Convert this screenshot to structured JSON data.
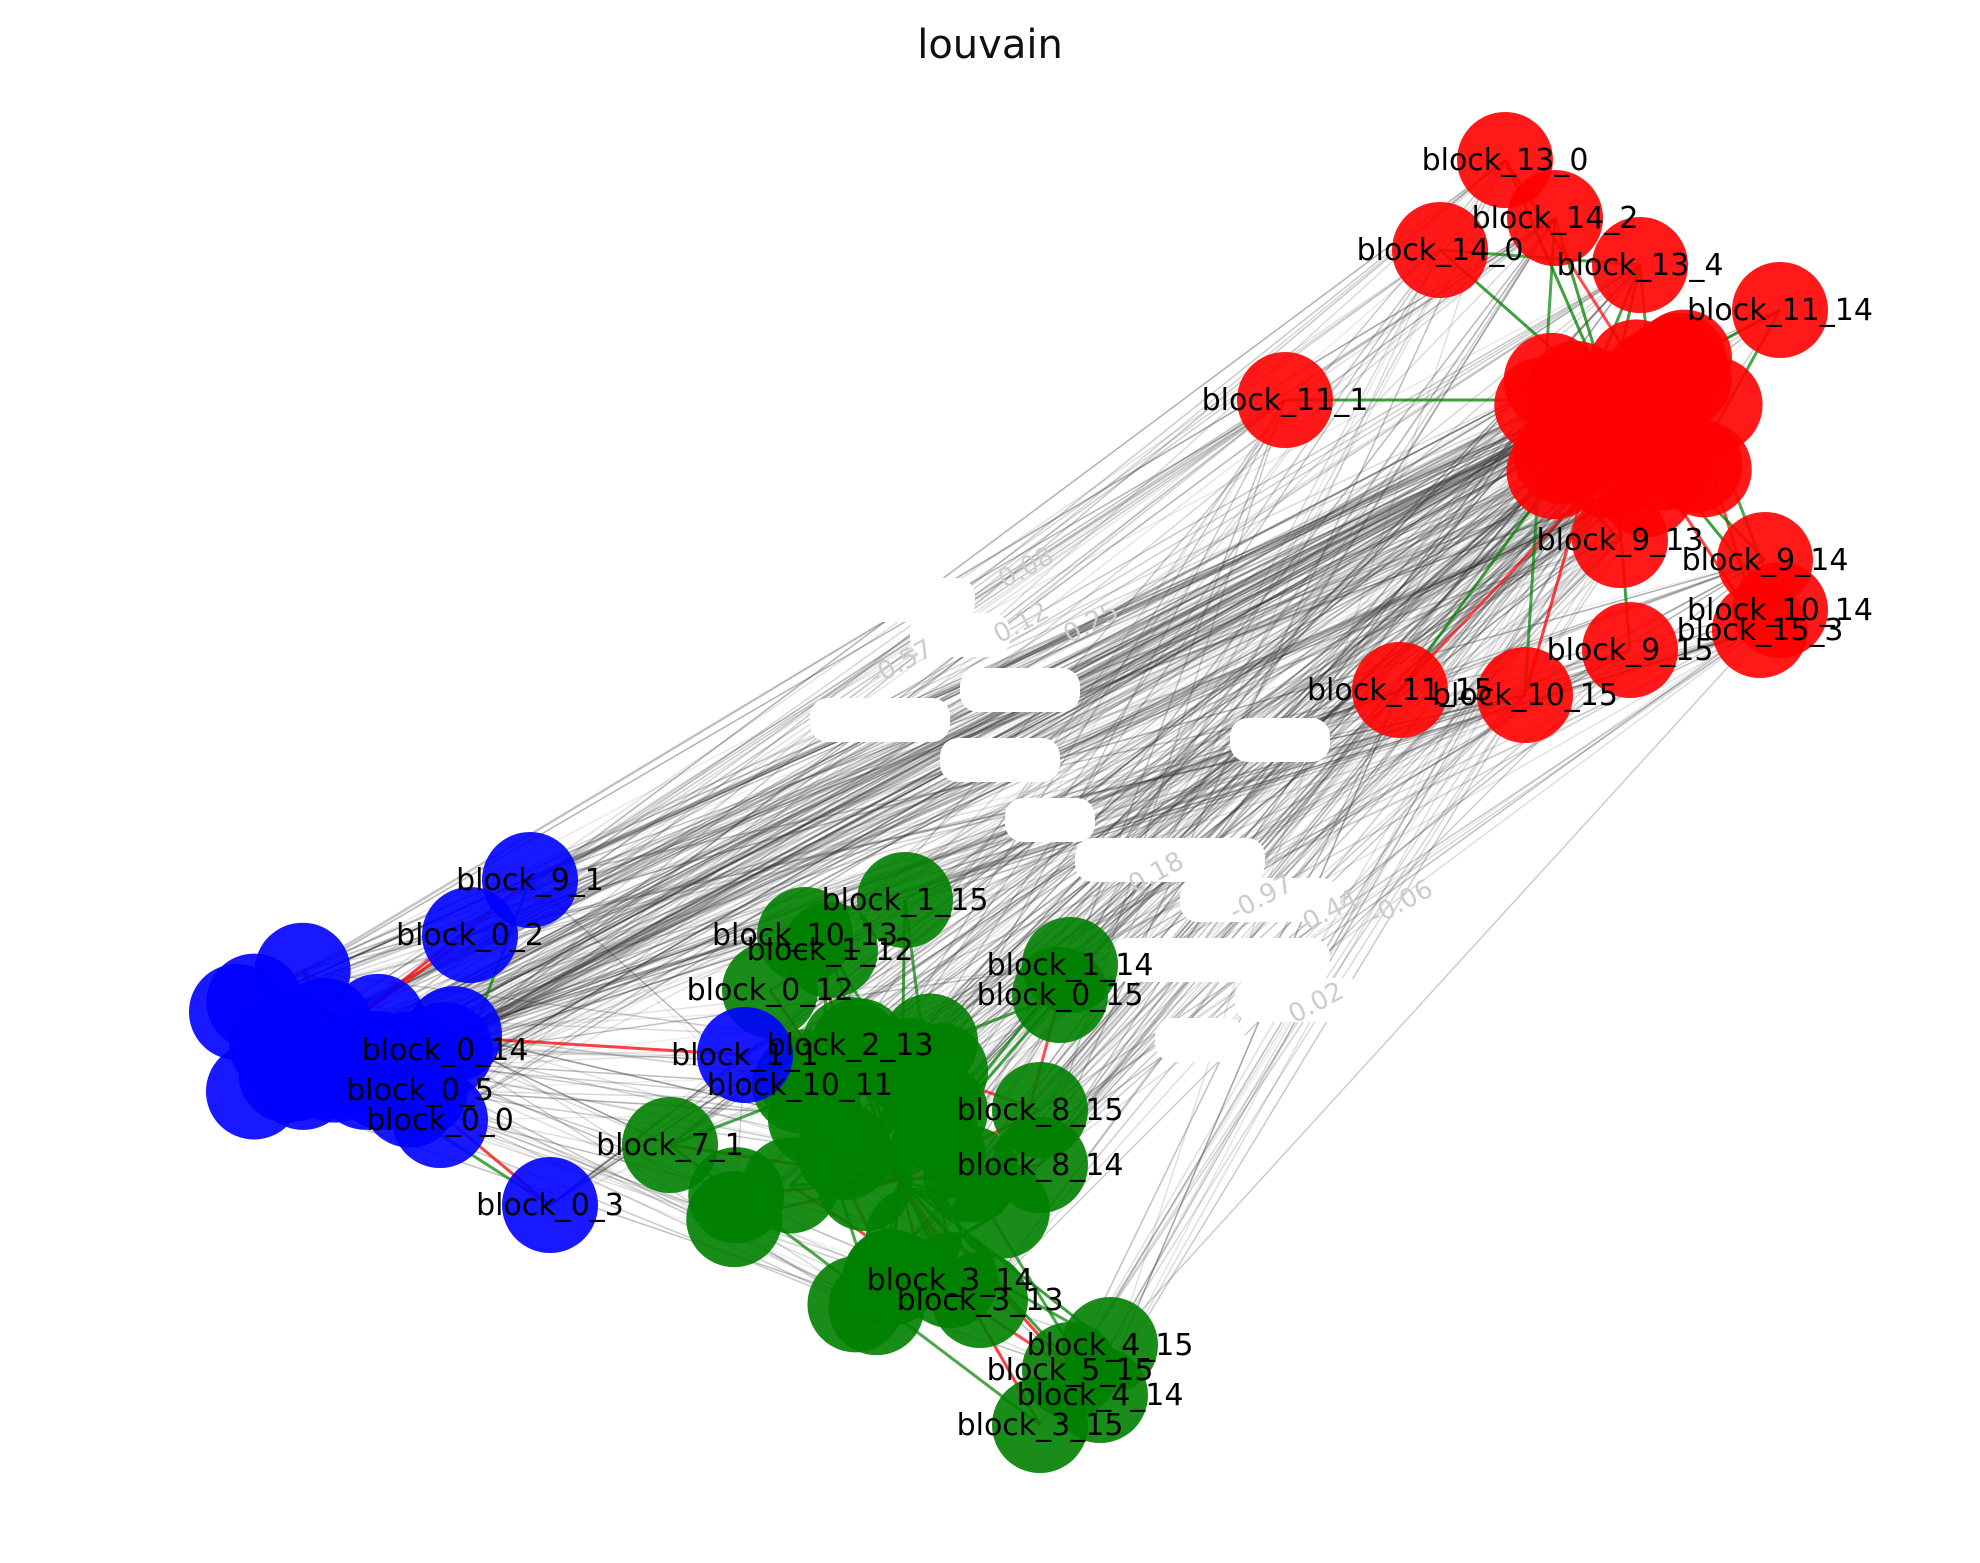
{
  "title": "louvain",
  "communities": [
    {
      "id": "red",
      "color": "#ff0000"
    },
    {
      "id": "green",
      "color": "#008000"
    },
    {
      "id": "blue",
      "color": "#0000ff"
    }
  ],
  "edge_colors": {
    "positive": "#008000",
    "negative": "#ff0000",
    "inter": "#333333"
  },
  "nodes": [
    {
      "label": "block_13_0",
      "community": "red"
    },
    {
      "label": "block_14_2",
      "community": "red"
    },
    {
      "label": "block_14_0",
      "community": "red"
    },
    {
      "label": "block_13_4",
      "community": "red"
    },
    {
      "label": "block_11_14",
      "community": "red"
    },
    {
      "label": "block_11_1",
      "community": "red"
    },
    {
      "label": "block_9_13",
      "community": "red"
    },
    {
      "label": "block_9_14",
      "community": "red"
    },
    {
      "label": "block_10_14",
      "community": "red"
    },
    {
      "label": "block_15_3",
      "community": "red"
    },
    {
      "label": "block_9_15",
      "community": "red"
    },
    {
      "label": "block_11_15",
      "community": "red"
    },
    {
      "label": "block_10_15",
      "community": "red"
    },
    {
      "label": "block_1_15",
      "community": "green"
    },
    {
      "label": "block_10_13",
      "community": "green"
    },
    {
      "label": "block_1_12",
      "community": "green"
    },
    {
      "label": "block_1_14",
      "community": "green"
    },
    {
      "label": "block_0_15",
      "community": "green"
    },
    {
      "label": "block_0_12",
      "community": "green"
    },
    {
      "label": "block_2_13",
      "community": "green"
    },
    {
      "label": "block_10_11",
      "community": "green"
    },
    {
      "label": "block_8_15",
      "community": "green"
    },
    {
      "label": "block_8_14",
      "community": "green"
    },
    {
      "label": "block_7_1",
      "community": "green"
    },
    {
      "label": "block_3_13",
      "community": "green"
    },
    {
      "label": "block_3_14",
      "community": "green"
    },
    {
      "label": "block_4_15",
      "community": "green"
    },
    {
      "label": "block_5_15",
      "community": "green"
    },
    {
      "label": "block_4_14",
      "community": "green"
    },
    {
      "label": "block_3_15",
      "community": "green"
    },
    {
      "label": "block_9_1",
      "community": "blue"
    },
    {
      "label": "block_0_2",
      "community": "blue"
    },
    {
      "label": "block_0_0",
      "community": "blue"
    },
    {
      "label": "block_0_5",
      "community": "blue"
    },
    {
      "label": "block_0_3",
      "community": "blue"
    },
    {
      "label": "block_1_1",
      "community": "blue"
    },
    {
      "label": "block_0_14",
      "community": "blue"
    }
  ],
  "edge_labels": [
    "0.08",
    "-0.57",
    "0.12",
    "0.25",
    "0.18",
    "-0.97",
    "-0.44",
    "-0.06",
    "0.02"
  ]
}
